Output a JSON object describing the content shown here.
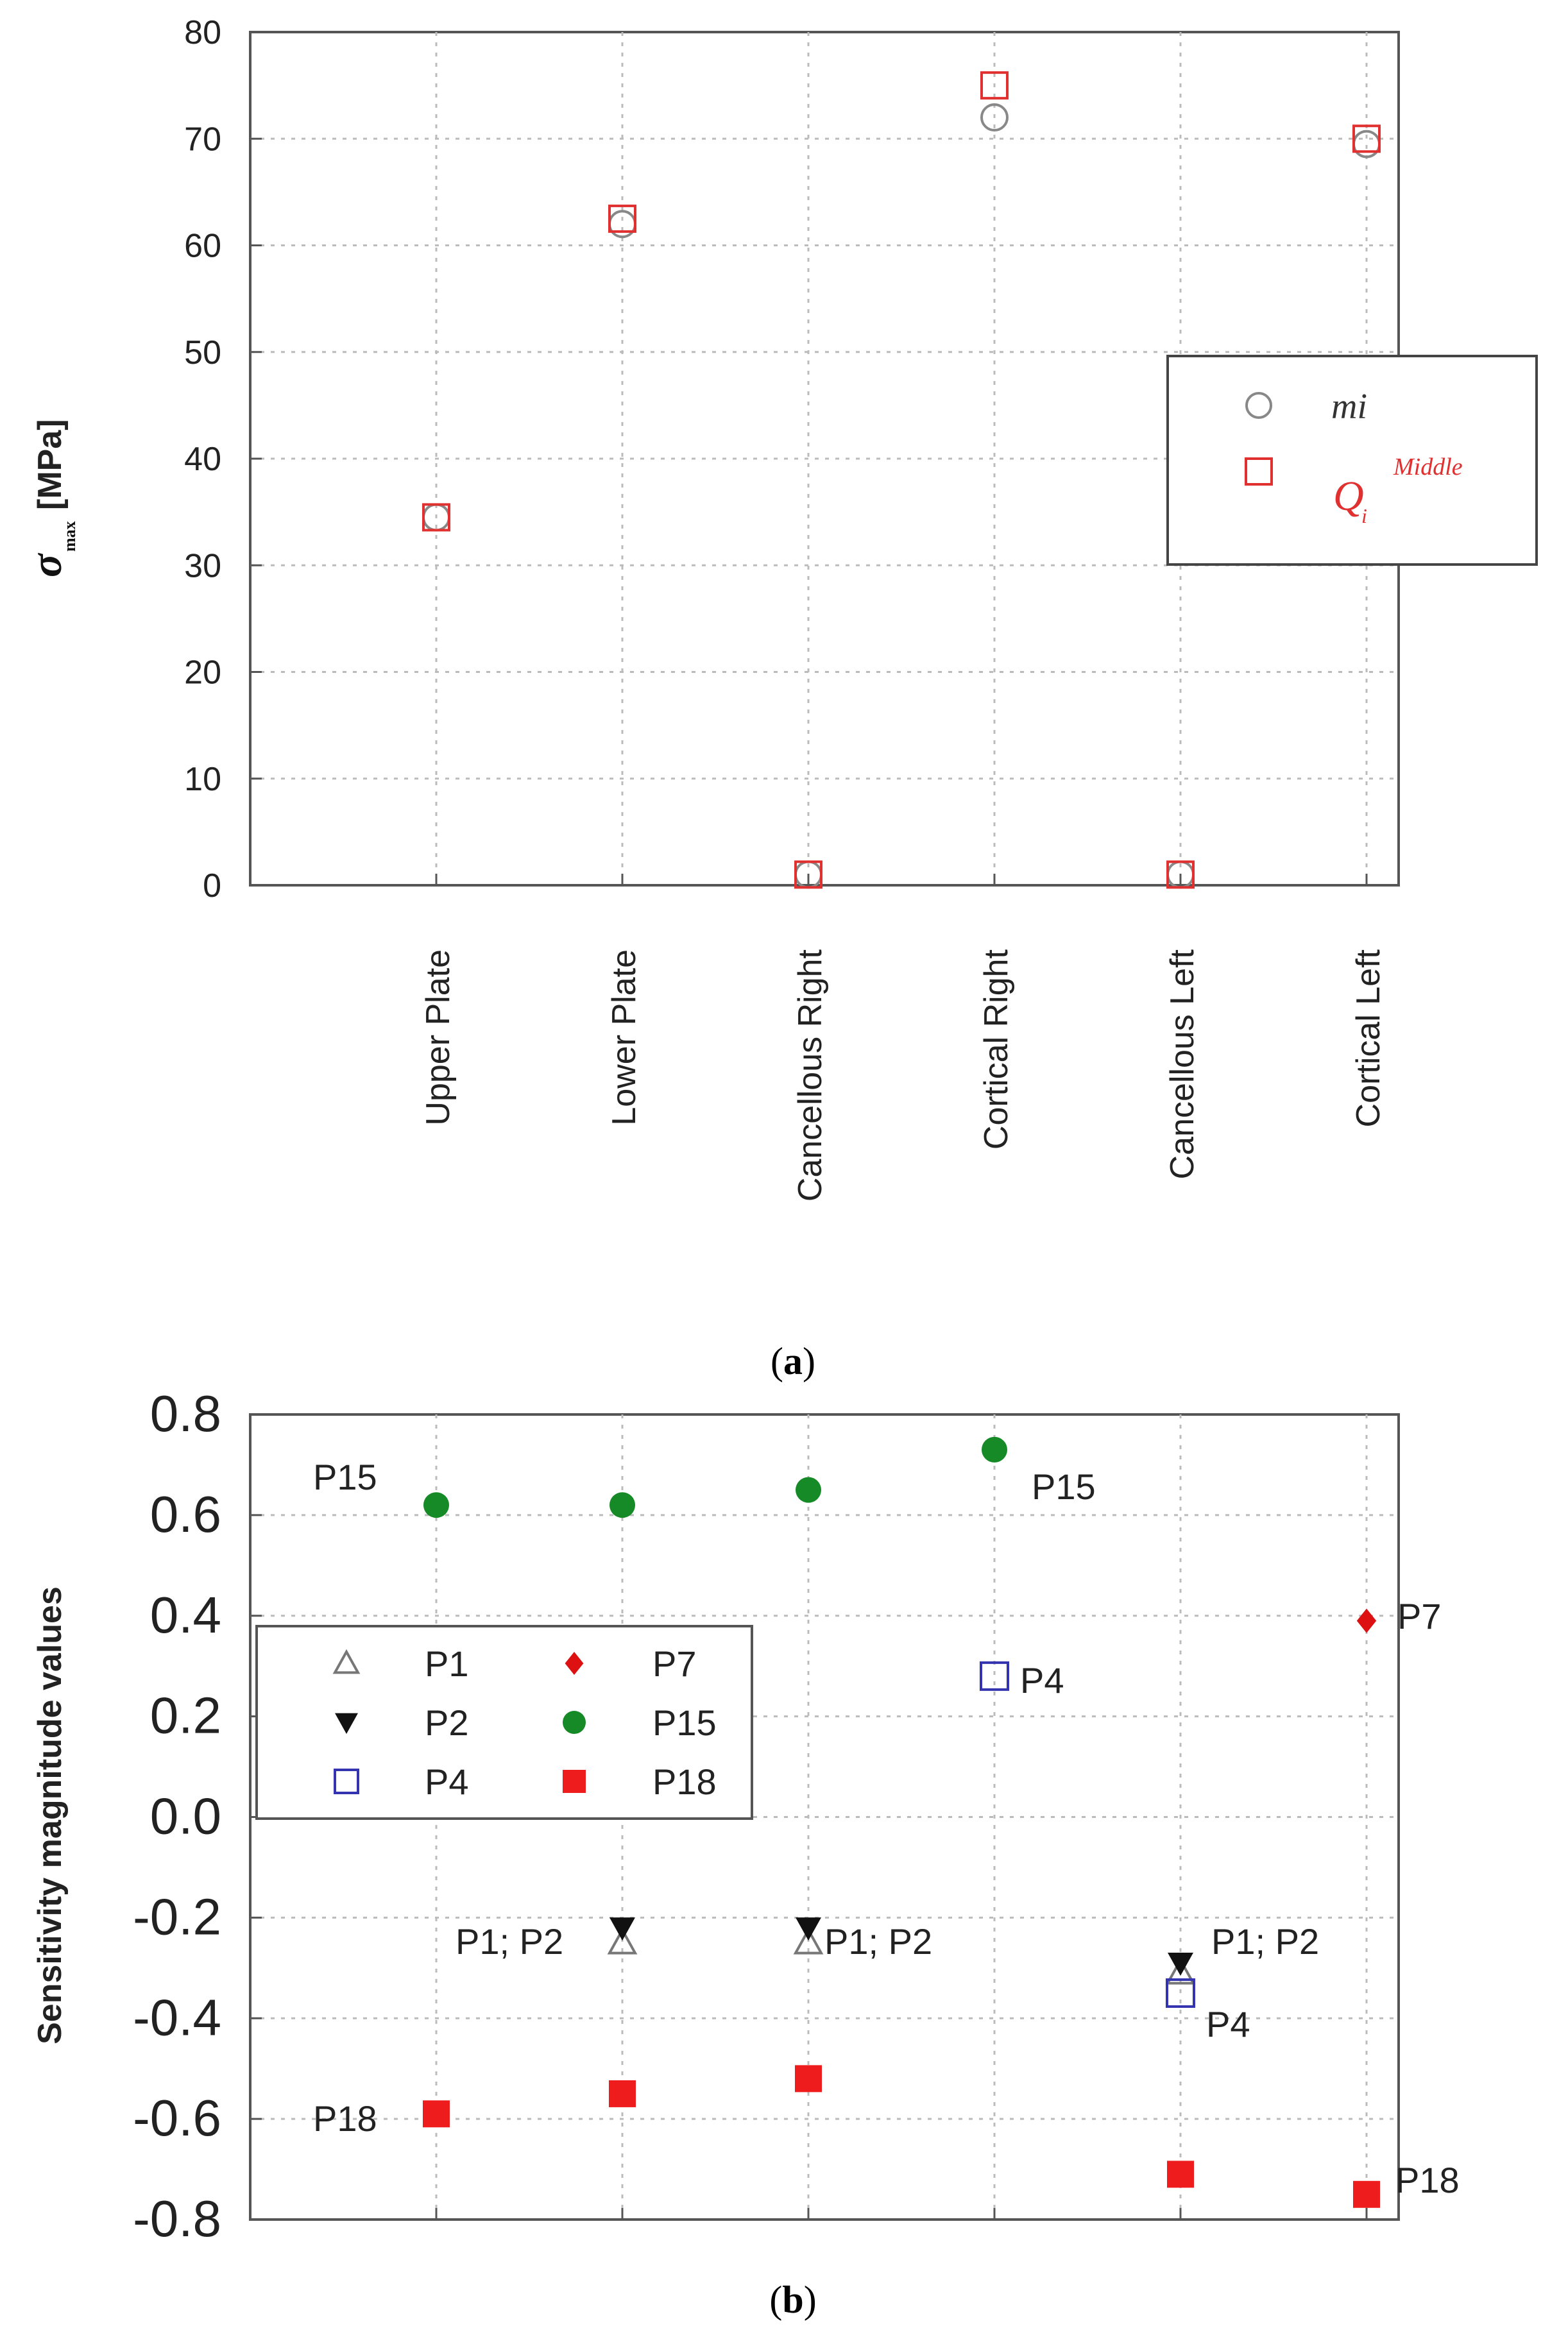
{
  "chart_data": [
    {
      "type": "scatter",
      "panel_label": "a",
      "ylabel_symbol": "σ",
      "ylabel_sub": "max",
      "ylabel_unit": "[MPa]",
      "ylim": [
        0,
        80
      ],
      "yticks": [
        "0",
        "10",
        "20",
        "30",
        "40",
        "50",
        "60",
        "70",
        "80"
      ],
      "categories": [
        "Upper Plate",
        "Lower Plate",
        "Cancellous Right",
        "Cortical Right",
        "Cancellous Left",
        "Cortical Left"
      ],
      "grid": true,
      "legend_position": "middle-right",
      "series": [
        {
          "name": "mi",
          "marker": "circle-open",
          "color": "#888888",
          "values": [
            34.5,
            62,
            1,
            72,
            1,
            69.5
          ]
        },
        {
          "name": "Q",
          "name_sub": "i",
          "name_sup": "Middle",
          "marker": "square-open",
          "color": "#e03030",
          "values": [
            34.5,
            62.5,
            1,
            75,
            1,
            70
          ]
        }
      ]
    },
    {
      "type": "scatter",
      "panel_label": "b",
      "ylabel": "Sensitivity magnitude values",
      "ylim": [
        -0.8,
        0.8
      ],
      "yticks": [
        "-0.8",
        "-0.6",
        "-0.4",
        "-0.2",
        "0.0",
        "0.2",
        "0.4",
        "0.6",
        "0.8"
      ],
      "x_positions": [
        1,
        2,
        3,
        4,
        5,
        6
      ],
      "grid": true,
      "legend_position": "middle-left",
      "series": [
        {
          "name": "P1",
          "marker": "triangle-up-open",
          "color": "#777777",
          "points": [
            [
              2,
              -0.25
            ],
            [
              3,
              -0.25
            ],
            [
              5,
              -0.31
            ]
          ]
        },
        {
          "name": "P2",
          "marker": "triangle-down-filled",
          "color": "#111111",
          "points": [
            [
              2,
              -0.22
            ],
            [
              3,
              -0.22
            ],
            [
              5,
              -0.29
            ]
          ]
        },
        {
          "name": "P4",
          "marker": "square-open",
          "color": "#3434b0",
          "points": [
            [
              4,
              0.28
            ],
            [
              5,
              -0.35
            ]
          ]
        },
        {
          "name": "P7",
          "marker": "diamond-filled",
          "color": "#dd1111",
          "points": [
            [
              6,
              0.39
            ]
          ]
        },
        {
          "name": "P15",
          "marker": "circle-filled",
          "color": "#168a26",
          "points": [
            [
              1,
              0.62
            ],
            [
              2,
              0.62
            ],
            [
              3,
              0.65
            ],
            [
              4,
              0.73
            ]
          ]
        },
        {
          "name": "P18",
          "marker": "square-filled",
          "color": "#ee1c1c",
          "points": [
            [
              1,
              -0.59
            ],
            [
              2,
              -0.55
            ],
            [
              3,
              -0.52
            ],
            [
              5,
              -0.71
            ],
            [
              6,
              -0.75
            ]
          ]
        }
      ],
      "annotations": [
        {
          "text": "P15",
          "color": "#222222"
        },
        {
          "text": "P15",
          "color": "#222222"
        },
        {
          "text": "P7",
          "color": "#dd1111"
        },
        {
          "text": "P4",
          "color": "#3434b0"
        },
        {
          "text": "P1; P2",
          "color": "#222222"
        },
        {
          "text": "P1; P2",
          "color": "#222222"
        },
        {
          "text": "P1; P2",
          "color": "#222222"
        },
        {
          "text": "P4",
          "color": "#3434b0"
        },
        {
          "text": "P18",
          "color": "#ee1c1c"
        },
        {
          "text": "P18",
          "color": "#ee1c1c"
        }
      ]
    }
  ]
}
